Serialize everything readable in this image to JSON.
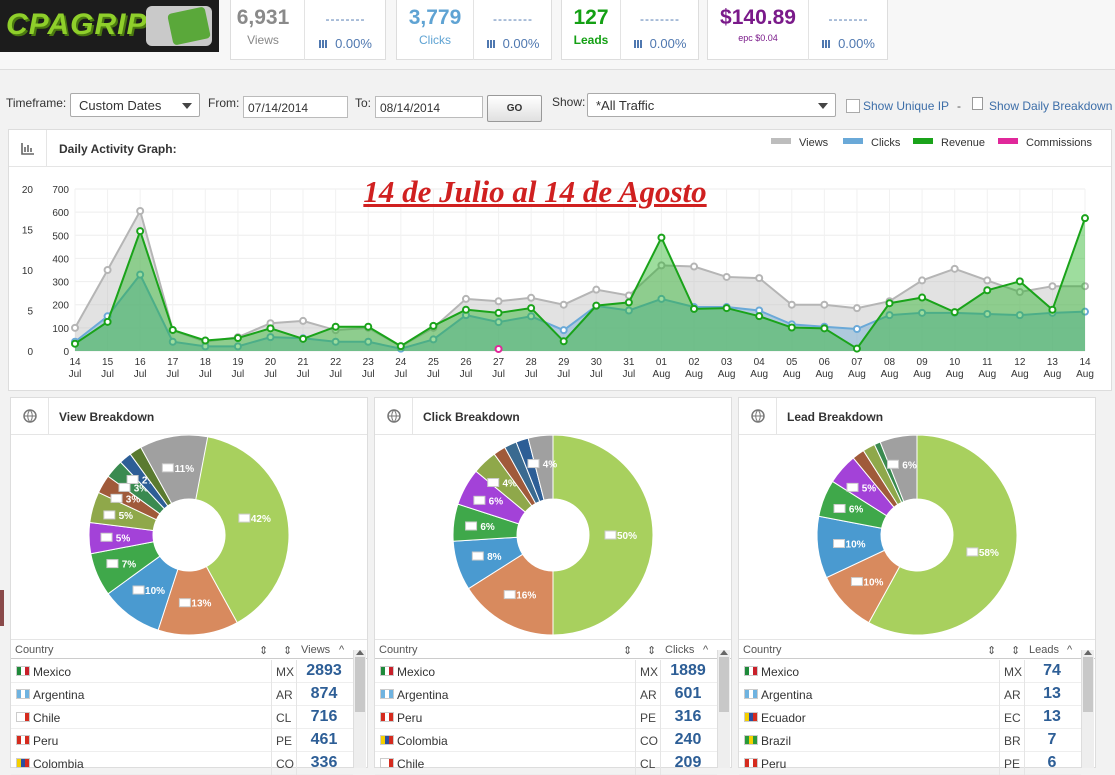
{
  "logo": {
    "text": "CPAGRIP"
  },
  "stats": [
    {
      "value": "6,931",
      "label": "Views",
      "color": "#8a8a8a",
      "dash": "--------",
      "pct": "0.00%"
    },
    {
      "value": "3,779",
      "label": "Clicks",
      "color": "#5fa3d3",
      "dash": "--------",
      "pct": "0.00%"
    },
    {
      "value": "127",
      "label": "Leads",
      "color": "#14a014",
      "dash": "--------",
      "pct": "0.00%"
    },
    {
      "value": "$140.89",
      "label": "epc $0.04",
      "color": "#7a1a8a",
      "dash": "--------",
      "pct": "0.00%"
    }
  ],
  "filter": {
    "timeframe_label": "Timeframe:",
    "timeframe_value": "Custom Dates",
    "from_label": "From:",
    "from_value": "07/14/2014",
    "to_label": "To:",
    "to_value": "08/14/2014",
    "go_label": "GO",
    "show_label": "Show:",
    "show_value": "*All Traffic",
    "unique_ip_label": "Show Unique IP",
    "sep": "-",
    "daily_breakdown_label": "Show Daily Breakdown"
  },
  "graph": {
    "title": "Daily Activity Graph:",
    "annotation": "14 de Julio al 14 de Agosto",
    "legend": [
      {
        "name": "Views",
        "color": "#bdbdbd"
      },
      {
        "name": "Clicks",
        "color": "#6aa9d8"
      },
      {
        "name": "Revenue",
        "color": "#1aa31a"
      },
      {
        "name": "Commissions",
        "color": "#e0289a"
      }
    ]
  },
  "chart_data": {
    "type": "area",
    "x_day": [
      "14",
      "15",
      "16",
      "17",
      "18",
      "19",
      "20",
      "21",
      "22",
      "23",
      "24",
      "25",
      "26",
      "27",
      "28",
      "29",
      "30",
      "31",
      "01",
      "02",
      "03",
      "04",
      "05",
      "06",
      "07",
      "08",
      "09",
      "10",
      "11",
      "12",
      "13",
      "14"
    ],
    "x_month": [
      "Jul",
      "Jul",
      "Jul",
      "Jul",
      "Jul",
      "Jul",
      "Jul",
      "Jul",
      "Jul",
      "Jul",
      "Jul",
      "Jul",
      "Jul",
      "Jul",
      "Jul",
      "Jul",
      "Jul",
      "Jul",
      "Aug",
      "Aug",
      "Aug",
      "Aug",
      "Aug",
      "Aug",
      "Aug",
      "Aug",
      "Aug",
      "Aug",
      "Aug",
      "Aug",
      "Aug",
      "Aug"
    ],
    "y_left_ticks": [
      "0",
      "100",
      "200",
      "300",
      "400",
      "500",
      "600",
      "700"
    ],
    "y_right_ticks": [
      "0",
      "5",
      "10",
      "15",
      "20"
    ],
    "ylim_left": [
      0,
      700
    ],
    "ylim_right": [
      0,
      20
    ],
    "series": [
      {
        "name": "Views",
        "axis": "left",
        "values": [
          100,
          350,
          605,
          90,
          40,
          60,
          120,
          130,
          90,
          100,
          20,
          100,
          225,
          215,
          230,
          200,
          265,
          240,
          370,
          365,
          320,
          315,
          200,
          200,
          185,
          215,
          305,
          355,
          305,
          255,
          280,
          280
        ]
      },
      {
        "name": "Clicks",
        "axis": "left",
        "values": [
          40,
          150,
          330,
          40,
          20,
          20,
          60,
          55,
          40,
          40,
          10,
          50,
          155,
          125,
          150,
          90,
          195,
          175,
          225,
          190,
          190,
          175,
          115,
          105,
          95,
          155,
          165,
          165,
          160,
          155,
          165,
          170
        ]
      },
      {
        "name": "Revenue",
        "axis": "right",
        "values": [
          0.9,
          3.6,
          14.8,
          2.6,
          1.3,
          1.6,
          2.8,
          1.5,
          3.0,
          3.0,
          0.6,
          3.1,
          5.1,
          4.7,
          5.3,
          1.2,
          5.6,
          6.0,
          14.0,
          5.2,
          5.3,
          4.3,
          2.9,
          2.8,
          0.3,
          5.9,
          6.6,
          4.8,
          7.5,
          8.6,
          5.1,
          16.4
        ]
      },
      {
        "name": "Commissions",
        "axis": "right",
        "values": [
          0,
          0,
          0,
          0,
          0,
          0,
          0,
          0,
          0,
          0,
          0,
          0,
          0,
          0,
          0,
          0,
          0,
          0,
          0,
          0,
          0,
          0,
          0,
          0,
          0,
          0,
          0,
          0,
          0,
          0,
          0,
          0
        ]
      }
    ]
  },
  "breakdowns": [
    {
      "title": "View Breakdown",
      "metric": "Views",
      "slices": [
        {
          "label": "42%",
          "pct": 42,
          "color": "#a8d05e"
        },
        {
          "label": "13%",
          "pct": 13,
          "color": "#d88a5e"
        },
        {
          "label": "10%",
          "pct": 10,
          "color": "#4a9ad0"
        },
        {
          "label": "7%",
          "pct": 7,
          "color": "#3fa84a"
        },
        {
          "label": "5%",
          "pct": 5,
          "color": "#a342d8"
        },
        {
          "label": "5%",
          "pct": 5,
          "color": "#8fa84a"
        },
        {
          "label": "3%",
          "pct": 3,
          "color": "#a05a3a"
        },
        {
          "label": "3%",
          "pct": 3,
          "color": "#3a8a50"
        },
        {
          "label": "2%",
          "pct": 2,
          "color": "#2d5e96"
        },
        {
          "label": "",
          "pct": 2,
          "color": "#5a7a30"
        },
        {
          "label": "11%",
          "pct": 11,
          "color": "#a0a0a0"
        }
      ],
      "columns": [
        "Country",
        "Views"
      ],
      "rows": [
        {
          "country": "Mexico",
          "code": "MX",
          "value": "2893"
        },
        {
          "country": "Argentina",
          "code": "AR",
          "value": "874"
        },
        {
          "country": "Chile",
          "code": "CL",
          "value": "716"
        },
        {
          "country": "Peru",
          "code": "PE",
          "value": "461"
        },
        {
          "country": "Colombia",
          "code": "CO",
          "value": "336"
        }
      ]
    },
    {
      "title": "Click Breakdown",
      "metric": "Clicks",
      "slices": [
        {
          "label": "50%",
          "pct": 50,
          "color": "#a8d05e"
        },
        {
          "label": "16%",
          "pct": 16,
          "color": "#d88a5e"
        },
        {
          "label": "8%",
          "pct": 8,
          "color": "#4a9ad0"
        },
        {
          "label": "6%",
          "pct": 6,
          "color": "#3fa84a"
        },
        {
          "label": "6%",
          "pct": 6,
          "color": "#a342d8"
        },
        {
          "label": "4%",
          "pct": 4,
          "color": "#8fa84a"
        },
        {
          "label": "",
          "pct": 2,
          "color": "#a05a3a"
        },
        {
          "label": "",
          "pct": 2,
          "color": "#3a6a90"
        },
        {
          "label": "",
          "pct": 2,
          "color": "#2d5e96"
        },
        {
          "label": "4%",
          "pct": 4,
          "color": "#a0a0a0"
        }
      ],
      "columns": [
        "Country",
        "Clicks"
      ],
      "rows": [
        {
          "country": "Mexico",
          "code": "MX",
          "value": "1889"
        },
        {
          "country": "Argentina",
          "code": "AR",
          "value": "601"
        },
        {
          "country": "Peru",
          "code": "PE",
          "value": "316"
        },
        {
          "country": "Colombia",
          "code": "CO",
          "value": "240"
        },
        {
          "country": "Chile",
          "code": "CL",
          "value": "209"
        }
      ]
    },
    {
      "title": "Lead Breakdown",
      "metric": "Leads",
      "slices": [
        {
          "label": "58%",
          "pct": 58,
          "color": "#a8d05e"
        },
        {
          "label": "10%",
          "pct": 10,
          "color": "#d88a5e"
        },
        {
          "label": "10%",
          "pct": 10,
          "color": "#4a9ad0"
        },
        {
          "label": "6%",
          "pct": 6,
          "color": "#3fa84a"
        },
        {
          "label": "5%",
          "pct": 5,
          "color": "#a342d8"
        },
        {
          "label": "",
          "pct": 2,
          "color": "#a05a3a"
        },
        {
          "label": "",
          "pct": 2,
          "color": "#8fa84a"
        },
        {
          "label": "",
          "pct": 1,
          "color": "#3a8a50"
        },
        {
          "label": "6%",
          "pct": 6,
          "color": "#a0a0a0"
        }
      ],
      "columns": [
        "Country",
        "Leads"
      ],
      "rows": [
        {
          "country": "Mexico",
          "code": "MX",
          "value": "74"
        },
        {
          "country": "Argentina",
          "code": "AR",
          "value": "13"
        },
        {
          "country": "Ecuador",
          "code": "EC",
          "value": "13"
        },
        {
          "country": "Brazil",
          "code": "BR",
          "value": "7"
        },
        {
          "country": "Peru",
          "code": "PE",
          "value": "6"
        }
      ]
    }
  ]
}
